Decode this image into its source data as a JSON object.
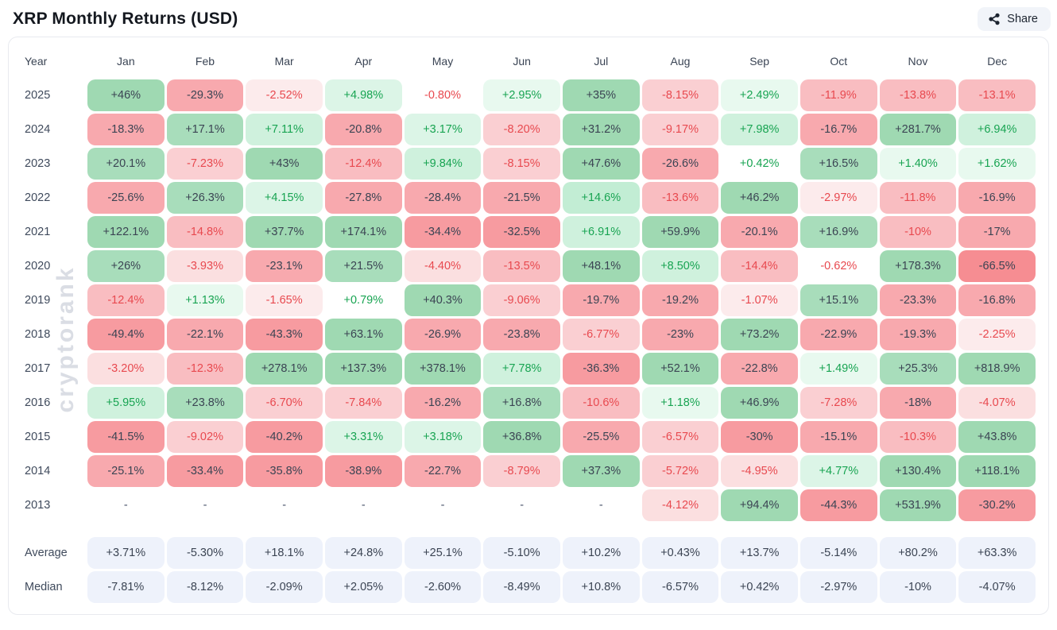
{
  "page": {
    "title": "XRP Monthly Returns (USD)",
    "share_label": "Share",
    "watermark": "cryptorank"
  },
  "colors": {
    "positive_strong_bg": "#a8ddbb",
    "positive_light_bg": "#dcf5e7",
    "negative_strong_bg": "#f8a9ae",
    "negative_light_bg": "#fbdfe0",
    "positive_text": "#18a452",
    "negative_text": "#e8494f",
    "dark_text": "#3b4453",
    "summary_bg": "#eef2fb"
  },
  "chart_data": {
    "type": "heatmap",
    "title": "XRP Monthly Returns (USD)",
    "row_header": "Year",
    "columns": [
      "Jan",
      "Feb",
      "Mar",
      "Apr",
      "May",
      "Jun",
      "Jul",
      "Aug",
      "Sep",
      "Oct",
      "Nov",
      "Dec"
    ],
    "rows": [
      {
        "label": "2025",
        "values": [
          "+46%",
          "-29.3%",
          "-2.52%",
          "+4.98%",
          "-0.80%",
          "+2.95%",
          "+35%",
          "-8.15%",
          "+2.49%",
          "-11.9%",
          "-13.8%",
          "-13.1%"
        ]
      },
      {
        "label": "2024",
        "values": [
          "-18.3%",
          "+17.1%",
          "+7.11%",
          "-20.8%",
          "+3.17%",
          "-8.20%",
          "+31.2%",
          "-9.17%",
          "+7.98%",
          "-16.7%",
          "+281.7%",
          "+6.94%"
        ]
      },
      {
        "label": "2023",
        "values": [
          "+20.1%",
          "-7.23%",
          "+43%",
          "-12.4%",
          "+9.84%",
          "-8.15%",
          "+47.6%",
          "-26.6%",
          "+0.42%",
          "+16.5%",
          "+1.40%",
          "+1.62%"
        ]
      },
      {
        "label": "2022",
        "values": [
          "-25.6%",
          "+26.3%",
          "+4.15%",
          "-27.8%",
          "-28.4%",
          "-21.5%",
          "+14.6%",
          "-13.6%",
          "+46.2%",
          "-2.97%",
          "-11.8%",
          "-16.9%"
        ]
      },
      {
        "label": "2021",
        "values": [
          "+122.1%",
          "-14.8%",
          "+37.7%",
          "+174.1%",
          "-34.4%",
          "-32.5%",
          "+6.91%",
          "+59.9%",
          "-20.1%",
          "+16.9%",
          "-10%",
          "-17%"
        ]
      },
      {
        "label": "2020",
        "values": [
          "+26%",
          "-3.93%",
          "-23.1%",
          "+21.5%",
          "-4.40%",
          "-13.5%",
          "+48.1%",
          "+8.50%",
          "-14.4%",
          "-0.62%",
          "+178.3%",
          "-66.5%"
        ]
      },
      {
        "label": "2019",
        "values": [
          "-12.4%",
          "+1.13%",
          "-1.65%",
          "+0.79%",
          "+40.3%",
          "-9.06%",
          "-19.7%",
          "-19.2%",
          "-1.07%",
          "+15.1%",
          "-23.3%",
          "-16.8%"
        ]
      },
      {
        "label": "2018",
        "values": [
          "-49.4%",
          "-22.1%",
          "-43.3%",
          "+63.1%",
          "-26.9%",
          "-23.8%",
          "-6.77%",
          "-23%",
          "+73.2%",
          "-22.9%",
          "-19.3%",
          "-2.25%"
        ]
      },
      {
        "label": "2017",
        "values": [
          "-3.20%",
          "-12.3%",
          "+278.1%",
          "+137.3%",
          "+378.1%",
          "+7.78%",
          "-36.3%",
          "+52.1%",
          "-22.8%",
          "+1.49%",
          "+25.3%",
          "+818.9%"
        ]
      },
      {
        "label": "2016",
        "values": [
          "+5.95%",
          "+23.8%",
          "-6.70%",
          "-7.84%",
          "-16.2%",
          "+16.8%",
          "-10.6%",
          "+1.18%",
          "+46.9%",
          "-7.28%",
          "-18%",
          "-4.07%"
        ]
      },
      {
        "label": "2015",
        "values": [
          "-41.5%",
          "-9.02%",
          "-40.2%",
          "+3.31%",
          "+3.18%",
          "+36.8%",
          "-25.5%",
          "-6.57%",
          "-30%",
          "-15.1%",
          "-10.3%",
          "+43.8%"
        ]
      },
      {
        "label": "2014",
        "values": [
          "-25.1%",
          "-33.4%",
          "-35.8%",
          "-38.9%",
          "-22.7%",
          "-8.79%",
          "+37.3%",
          "-5.72%",
          "-4.95%",
          "+4.77%",
          "+130.4%",
          "+118.1%"
        ]
      },
      {
        "label": "2013",
        "values": [
          "-",
          "-",
          "-",
          "-",
          "-",
          "-",
          "-",
          "-4.12%",
          "+94.4%",
          "-44.3%",
          "+531.9%",
          "-30.2%"
        ]
      }
    ],
    "summary_rows": [
      {
        "label": "Average",
        "values": [
          "+3.71%",
          "-5.30%",
          "+18.1%",
          "+24.8%",
          "+25.1%",
          "-5.10%",
          "+10.2%",
          "+0.43%",
          "+13.7%",
          "-5.14%",
          "+80.2%",
          "+63.3%"
        ]
      },
      {
        "label": "Median",
        "values": [
          "-7.81%",
          "-8.12%",
          "-2.09%",
          "+2.05%",
          "-2.60%",
          "-8.49%",
          "+10.8%",
          "-6.57%",
          "+0.42%",
          "-2.97%",
          "-10%",
          "-4.07%"
        ]
      }
    ],
    "legend": "green = positive monthly return, red = negative; color intensity scales with magnitude"
  }
}
